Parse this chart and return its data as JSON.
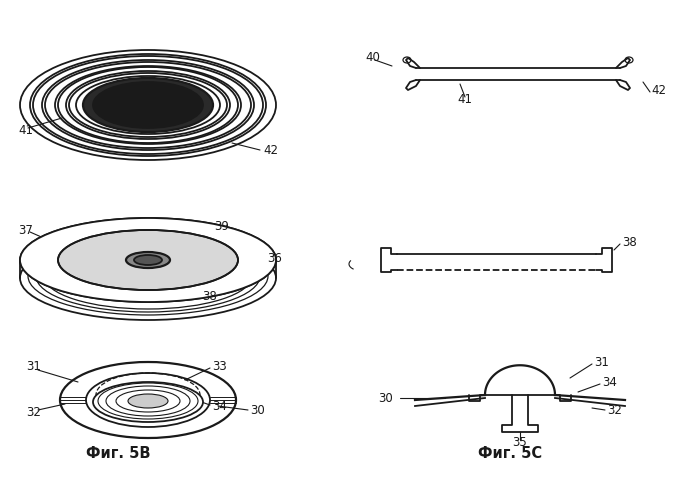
{
  "bg_color": "#ffffff",
  "line_color": "#1a1a1a",
  "fig_width": 7.0,
  "fig_height": 4.94,
  "dpi": 100,
  "labels": {
    "fig5b": "Фиг. 5В",
    "fig5c": "Фиг. 5C"
  }
}
